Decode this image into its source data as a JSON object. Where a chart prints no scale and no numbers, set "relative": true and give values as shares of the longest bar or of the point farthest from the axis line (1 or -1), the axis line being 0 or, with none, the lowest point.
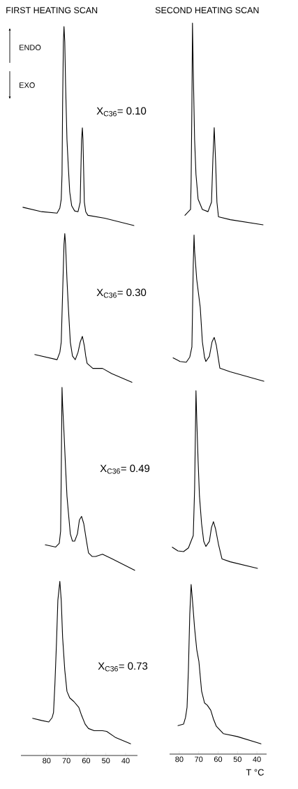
{
  "chart_data": [
    {
      "type": "line",
      "title": "FIRST HEATING SCAN",
      "relative": true,
      "xlim": [
        93,
        34
      ],
      "xticks": [
        80,
        70,
        60,
        50,
        40
      ],
      "tick_labels": "x",
      "annotations": [
        "ENDO",
        "EXO",
        "X$_{C36}$= 0.10",
        "X$_{C36}$= 0.30",
        "X$_{C36}$= 0.49",
        "X$_{C36}$= 0.73"
      ],
      "series": [
        {
          "color": "#000000",
          "x": [
            92.0,
            82.5,
            74.7,
            73.3,
            72.6,
            72.2,
            71.9,
            71.5,
            71.2,
            70.8,
            70.4,
            69.7,
            69.0,
            68.3,
            67.3,
            65.8,
            64.1,
            63.0,
            62.7,
            62.3,
            61.9,
            61.6,
            61.2,
            60.9,
            60.2,
            59.1,
            50.6,
            35.8
          ],
          "values": [
            0.752,
            0.746,
            0.744,
            0.751,
            0.763,
            0.797,
            0.893,
            0.979,
            1,
            0.979,
            0.921,
            0.845,
            0.807,
            0.773,
            0.754,
            0.747,
            0.746,
            0.759,
            0.797,
            0.845,
            0.861,
            0.845,
            0.797,
            0.759,
            0.746,
            0.741,
            0.737,
            0.727
          ]
        },
        {
          "color": "#000000",
          "x": [
            86.0,
            74.7,
            73.3,
            72.6,
            71.9,
            71.2,
            70.8,
            70.4,
            69.7,
            69.0,
            68.0,
            66.9,
            65.5,
            64.1,
            63.0,
            61.9,
            60.9,
            60.2,
            59.5,
            56.6,
            51.7,
            47.1,
            36.8
          ],
          "values": [
            0.55,
            0.543,
            0.553,
            0.567,
            0.634,
            0.701,
            0.716,
            0.701,
            0.653,
            0.615,
            0.567,
            0.548,
            0.543,
            0.553,
            0.567,
            0.575,
            0.562,
            0.548,
            0.538,
            0.531,
            0.531,
            0.524,
            0.512
          ]
        },
        {
          "color": "#000000",
          "x": [
            80.7,
            75.4,
            73.6,
            72.9,
            72.6,
            72.2,
            71.9,
            71.2,
            70.4,
            69.7,
            69.0,
            68.0,
            66.9,
            65.8,
            64.4,
            63.4,
            62.3,
            61.2,
            59.8,
            58.8,
            57.0,
            55.2,
            51.7,
            47.1,
            35.4
          ],
          "values": [
            0.289,
            0.286,
            0.291,
            0.308,
            0.385,
            0.505,
            0.481,
            0.443,
            0.395,
            0.356,
            0.334,
            0.304,
            0.294,
            0.294,
            0.304,
            0.323,
            0.328,
            0.318,
            0.294,
            0.278,
            0.273,
            0.273,
            0.276,
            0.27,
            0.254
          ]
        },
        {
          "color": "#000000",
          "x": [
            87.1,
            82.5,
            78.9,
            77.2,
            76.5,
            75.8,
            75.0,
            74.3,
            73.3,
            72.6,
            71.9,
            70.8,
            69.7,
            68.3,
            66.2,
            63.7,
            62.3,
            60.5,
            58.8,
            55.9,
            51.7,
            49.6,
            45.3,
            37.5
          ],
          "values": [
            0.051,
            0.048,
            0.046,
            0.052,
            0.059,
            0.098,
            0.155,
            0.213,
            0.239,
            0.213,
            0.162,
            0.117,
            0.088,
            0.079,
            0.074,
            0.066,
            0.055,
            0.043,
            0.037,
            0.034,
            0.034,
            0.033,
            0.025,
            0.016
          ]
        }
      ]
    },
    {
      "type": "line",
      "title": "SECOND HEATING SCAN",
      "relative": true,
      "xlim": [
        85,
        35
      ],
      "xticks": [
        80,
        70,
        60,
        50,
        40
      ],
      "tick_labels": "x",
      "xlabel": "T °C",
      "series": [
        {
          "color": "#000000",
          "x": [
            77.1,
            74.2,
            73.9,
            73.5,
            73.2,
            72.8,
            72.1,
            71.4,
            70.3,
            68.1,
            65.2,
            63.4,
            62.7,
            62.0,
            61.3,
            60.6,
            59.8,
            53.7,
            36.8
          ],
          "values": [
            0.737,
            0.745,
            0.783,
            0.888,
            1,
            0.936,
            0.84,
            0.793,
            0.759,
            0.745,
            0.742,
            0.755,
            0.812,
            0.857,
            0.812,
            0.755,
            0.735,
            0.731,
            0.724
          ]
        },
        {
          "color": "#000000",
          "x": [
            83.2,
            79.6,
            76.4,
            74.6,
            73.5,
            73.2,
            72.8,
            72.4,
            72.1,
            71.0,
            69.2,
            68.1,
            67.0,
            66.3,
            64.5,
            63.1,
            62.0,
            60.9,
            59.8,
            59.1,
            53.7,
            36.4
          ],
          "values": [
            0.542,
            0.537,
            0.536,
            0.543,
            0.557,
            0.602,
            0.669,
            0.71,
            0.688,
            0.649,
            0.611,
            0.564,
            0.543,
            0.537,
            0.544,
            0.564,
            0.57,
            0.559,
            0.54,
            0.528,
            0.523,
            0.51
          ]
        },
        {
          "color": "#000000",
          "x": [
            83.6,
            80.7,
            77.8,
            75.3,
            72.8,
            72.1,
            71.7,
            71.4,
            71.0,
            70.3,
            69.6,
            68.5,
            67.4,
            66.3,
            64.5,
            63.4,
            62.4,
            61.3,
            59.8,
            58.0,
            53.7,
            39.7
          ],
          "values": [
            0.283,
            0.278,
            0.277,
            0.282,
            0.299,
            0.363,
            0.439,
            0.497,
            0.458,
            0.401,
            0.353,
            0.315,
            0.291,
            0.284,
            0.291,
            0.31,
            0.318,
            0.308,
            0.287,
            0.267,
            0.263,
            0.254
          ]
        },
        {
          "color": "#000000",
          "x": [
            80.7,
            77.8,
            76.8,
            76.0,
            75.3,
            74.6,
            73.9,
            73.2,
            72.1,
            71.0,
            69.9,
            68.5,
            67.0,
            65.6,
            63.8,
            62.4,
            60.9,
            57.3,
            50.1,
            37.9
          ],
          "values": [
            0.039,
            0.041,
            0.05,
            0.064,
            0.115,
            0.191,
            0.232,
            0.21,
            0.172,
            0.143,
            0.127,
            0.086,
            0.07,
            0.067,
            0.06,
            0.048,
            0.038,
            0.028,
            0.024,
            0.014
          ]
        }
      ]
    }
  ]
}
